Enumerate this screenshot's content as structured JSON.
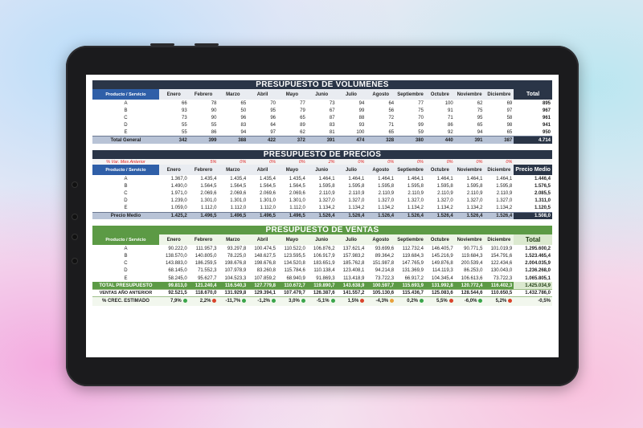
{
  "volumes": {
    "title": "PRESUPUESTO DE VOLUMENES",
    "header": {
      "first": "Producto / Servicio",
      "months": [
        "Enero",
        "Febrero",
        "Marzo",
        "Abril",
        "Mayo",
        "Junio",
        "Julio",
        "Agosto",
        "Septiembre",
        "Octubre",
        "Noviembre",
        "Diciembre"
      ],
      "last": "Total"
    },
    "rows": [
      {
        "label": "A",
        "values": [
          "66",
          "78",
          "65",
          "70",
          "77",
          "73",
          "94",
          "64",
          "77",
          "100",
          "62",
          "69"
        ],
        "total": "895"
      },
      {
        "label": "B",
        "values": [
          "93",
          "90",
          "50",
          "95",
          "79",
          "67",
          "99",
          "56",
          "75",
          "91",
          "75",
          "97"
        ],
        "total": "967"
      },
      {
        "label": "C",
        "values": [
          "73",
          "90",
          "96",
          "96",
          "65",
          "87",
          "88",
          "72",
          "70",
          "71",
          "95",
          "58"
        ],
        "total": "961"
      },
      {
        "label": "D",
        "values": [
          "55",
          "55",
          "83",
          "64",
          "89",
          "83",
          "93",
          "71",
          "99",
          "86",
          "65",
          "98"
        ],
        "total": "941"
      },
      {
        "label": "E",
        "values": [
          "55",
          "86",
          "94",
          "97",
          "62",
          "81",
          "100",
          "65",
          "59",
          "92",
          "94",
          "65"
        ],
        "total": "950"
      }
    ],
    "total_row": {
      "label": "Total General",
      "values": [
        "342",
        "399",
        "388",
        "422",
        "372",
        "391",
        "474",
        "328",
        "380",
        "440",
        "391",
        "387"
      ],
      "total": "4.714"
    }
  },
  "prices": {
    "title": "PRESUPUESTO DE PRECIOS",
    "var_row": {
      "label": "% Var. Mes Anterior",
      "values": [
        "",
        "5%",
        "0%",
        "0%",
        "0%",
        "2%",
        "0%",
        "0%",
        "0%",
        "0%",
        "0%",
        "0%"
      ]
    },
    "header": {
      "first": "Producto / Servicio",
      "months": [
        "Enero",
        "Febrero",
        "Marzo",
        "Abril",
        "Mayo",
        "Junio",
        "Julio",
        "Agosto",
        "Septiembre",
        "Octubre",
        "Noviembre",
        "Diciembre"
      ],
      "last": "Precio Medio"
    },
    "rows": [
      {
        "label": "A",
        "values": [
          "1.367,0",
          "1.435,4",
          "1.435,4",
          "1.435,4",
          "1.435,4",
          "1.464,1",
          "1.464,1",
          "1.464,1",
          "1.464,1",
          "1.464,1",
          "1.464,1",
          "1.464,1"
        ],
        "total": "1.446,4"
      },
      {
        "label": "B",
        "values": [
          "1.490,0",
          "1.564,5",
          "1.564,5",
          "1.564,5",
          "1.564,5",
          "1.595,8",
          "1.595,8",
          "1.595,8",
          "1.595,8",
          "1.595,8",
          "1.595,8",
          "1.595,8"
        ],
        "total": "1.576,5"
      },
      {
        "label": "C",
        "values": [
          "1.971,0",
          "2.069,6",
          "2.069,6",
          "2.069,6",
          "2.069,6",
          "2.110,9",
          "2.110,9",
          "2.110,9",
          "2.110,9",
          "2.110,9",
          "2.110,9",
          "2.110,9"
        ],
        "total": "2.085,5"
      },
      {
        "label": "D",
        "values": [
          "1.239,0",
          "1.301,0",
          "1.301,0",
          "1.301,0",
          "1.301,0",
          "1.327,0",
          "1.327,0",
          "1.327,0",
          "1.327,0",
          "1.327,0",
          "1.327,0",
          "1.327,0"
        ],
        "total": "1.311,0"
      },
      {
        "label": "E",
        "values": [
          "1.059,0",
          "1.112,0",
          "1.112,0",
          "1.112,0",
          "1.112,0",
          "1.134,2",
          "1.134,2",
          "1.134,2",
          "1.134,2",
          "1.134,2",
          "1.134,2",
          "1.134,2"
        ],
        "total": "1.120,5"
      }
    ],
    "total_row": {
      "label": "Precio Medio",
      "values": [
        "1.425,2",
        "1.496,5",
        "1.496,5",
        "1.496,5",
        "1.496,5",
        "1.526,4",
        "1.526,4",
        "1.526,4",
        "1.526,4",
        "1.526,4",
        "1.526,4",
        "1.526,4"
      ],
      "total": "1.508,0"
    }
  },
  "sales": {
    "title": "PRESUPUESTO DE VENTAS",
    "header": {
      "first": "Producto / Servicio",
      "months": [
        "Enero",
        "Febrero",
        "Marzo",
        "Abril",
        "Mayo",
        "Junio",
        "Julio",
        "Agosto",
        "Septiembre",
        "Octubre",
        "Noviembre",
        "Diciembre"
      ],
      "last": "Total"
    },
    "rows": [
      {
        "label": "A",
        "values": [
          "90.222,0",
          "111.957,3",
          "93.297,8",
          "100.474,5",
          "110.522,0",
          "106.876,2",
          "137.621,4",
          "93.699,6",
          "112.732,4",
          "146.405,7",
          "90.771,5",
          "101.019,9"
        ],
        "total": "1.295.600,2"
      },
      {
        "label": "B",
        "values": [
          "138.570,0",
          "140.805,0",
          "78.225,0",
          "148.627,5",
          "123.595,5",
          "106.917,9",
          "157.983,2",
          "89.364,2",
          "119.684,3",
          "145.216,9",
          "119.684,3",
          "154.791,6"
        ],
        "total": "1.523.465,4"
      },
      {
        "label": "C",
        "values": [
          "143.883,0",
          "186.259,5",
          "198.676,8",
          "198.676,8",
          "134.520,8",
          "183.651,9",
          "185.762,8",
          "151.987,8",
          "147.765,9",
          "149.876,8",
          "200.539,4",
          "122.434,6"
        ],
        "total": "2.004.035,9"
      },
      {
        "label": "D",
        "values": [
          "68.145,0",
          "71.552,3",
          "107.978,9",
          "83.260,8",
          "115.784,6",
          "110.138,4",
          "123.408,1",
          "94.214,8",
          "131.369,9",
          "114.119,3",
          "86.253,0",
          "130.043,0"
        ],
        "total": "1.236.268,0"
      },
      {
        "label": "E",
        "values": [
          "58.245,0",
          "95.627,7",
          "104.523,3",
          "107.859,2",
          "68.940,9",
          "91.869,3",
          "113.418,9",
          "73.722,3",
          "66.917,2",
          "104.345,4",
          "106.613,6",
          "73.722,3"
        ],
        "total": "1.065.805,1"
      }
    ],
    "total_row": {
      "label": "TOTAL PRESUPUESTO",
      "values": [
        "99.813,0",
        "121.240,4",
        "116.540,3",
        "127.779,8",
        "110.672,7",
        "119.890,7",
        "143.638,9",
        "100.597,7",
        "115.693,9",
        "131.992,8",
        "120.772,4",
        "116.402,3"
      ],
      "total": "1.425.034,9"
    },
    "prev_row": {
      "label": "VENTAS AÑO ANTERIOR",
      "values": [
        "92.521,5",
        "118.670,0",
        "131.929,8",
        "129.394,1",
        "107.479,7",
        "126.387,6",
        "141.557,2",
        "105.130,6",
        "115.436,7",
        "125.083,6",
        "128.544,6",
        "110.650,5"
      ],
      "total": "1.432.786,0"
    },
    "growth_row": {
      "label": "% CREC. ESTIMADO",
      "values": [
        "7,9%",
        "2,2%",
        "-11,7%",
        "-1,2%",
        "3,0%",
        "-5,1%",
        "1,5%",
        "-4,3%",
        "0,2%",
        "5,5%",
        "-6,0%",
        "5,2%"
      ],
      "dots": [
        "green",
        "red",
        "green",
        "green",
        "green",
        "green",
        "red",
        "amber",
        "green",
        "red",
        "green",
        "red"
      ],
      "total": "-0,5%"
    }
  }
}
